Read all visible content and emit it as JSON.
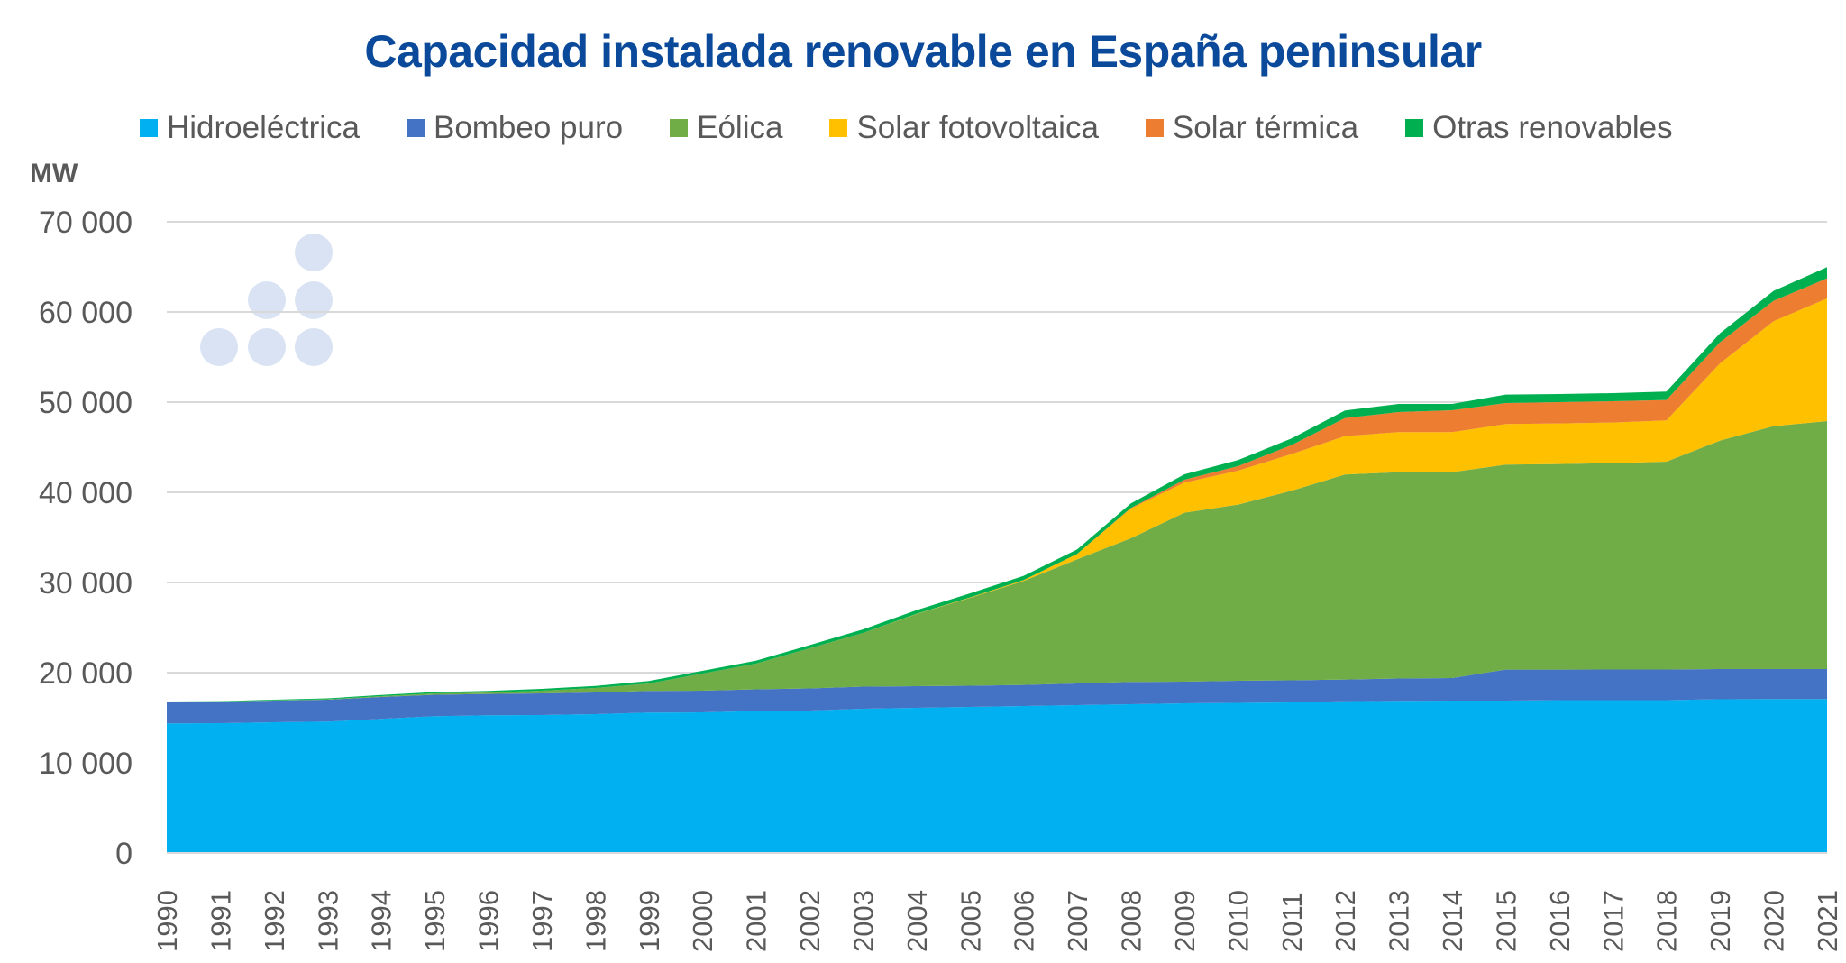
{
  "chart_data": {
    "type": "area",
    "stacked": true,
    "title": "Capacidad instalada renovable en España peninsular",
    "ylabel": "MW",
    "xlabel": "",
    "ylim": [
      0,
      70000
    ],
    "yticks": [
      0,
      10000,
      20000,
      30000,
      40000,
      50000,
      60000,
      70000
    ],
    "ytick_labels": [
      "0",
      "10 000",
      "20 000",
      "30 000",
      "40 000",
      "50 000",
      "60 000",
      "70 000"
    ],
    "grid": true,
    "legend_position": "top",
    "categories": [
      "1990",
      "1991",
      "1992",
      "1993",
      "1994",
      "1995",
      "1996",
      "1997",
      "1998",
      "1999",
      "2000",
      "2001",
      "2002",
      "2003",
      "2004",
      "2005",
      "2006",
      "2007",
      "2008",
      "2009",
      "2010",
      "2011",
      "2012",
      "2013",
      "2014",
      "2015",
      "2016",
      "2017",
      "2018",
      "2019",
      "2020",
      "2021"
    ],
    "series": [
      {
        "name": "Hidroeléctrica",
        "color": "#00B0F0",
        "values": [
          14370,
          14400,
          14500,
          14570,
          14870,
          15170,
          15270,
          15300,
          15400,
          15570,
          15600,
          15750,
          15800,
          16000,
          16100,
          16200,
          16300,
          16400,
          16500,
          16600,
          16650,
          16700,
          16840,
          16870,
          16900,
          16900,
          16950,
          16950,
          16950,
          17050,
          17070,
          17070
        ]
      },
      {
        "name": "Bombeo puro",
        "color": "#4472C4",
        "values": [
          2370,
          2380,
          2400,
          2430,
          2430,
          2380,
          2370,
          2400,
          2400,
          2400,
          2400,
          2400,
          2450,
          2450,
          2400,
          2350,
          2340,
          2400,
          2470,
          2400,
          2450,
          2450,
          2400,
          2480,
          2500,
          3440,
          3390,
          3400,
          3400,
          3350,
          3330,
          3330
        ]
      },
      {
        "name": "Eólica",
        "color": "#70AD47",
        "values": [
          0,
          0,
          20,
          50,
          100,
          150,
          160,
          300,
          500,
          830,
          1900,
          2850,
          4450,
          5950,
          8000,
          9750,
          11530,
          13770,
          15930,
          18740,
          19540,
          21020,
          22730,
          22890,
          22840,
          22730,
          22800,
          22890,
          23050,
          25340,
          26940,
          27500
        ]
      },
      {
        "name": "Solar fotovoltaica",
        "color": "#FFC000",
        "values": [
          0,
          0,
          0,
          0,
          0,
          0,
          0,
          0,
          0,
          0,
          0,
          0,
          0,
          0,
          20,
          50,
          100,
          600,
          3300,
          3330,
          3760,
          4070,
          4270,
          4430,
          4430,
          4500,
          4500,
          4500,
          4570,
          8560,
          11630,
          13600
        ]
      },
      {
        "name": "Solar térmica",
        "color": "#ED7D31",
        "values": [
          0,
          0,
          0,
          0,
          0,
          0,
          0,
          0,
          0,
          0,
          0,
          0,
          0,
          0,
          0,
          0,
          0,
          10,
          60,
          330,
          500,
          1000,
          2000,
          2230,
          2430,
          2330,
          2360,
          2360,
          2270,
          2340,
          2270,
          2240
        ]
      },
      {
        "name": "Otras renovables",
        "color": "#00B050",
        "values": [
          60,
          60,
          80,
          100,
          120,
          150,
          170,
          200,
          230,
          270,
          300,
          330,
          350,
          400,
          420,
          450,
          470,
          500,
          500,
          600,
          670,
          730,
          830,
          900,
          700,
          940,
          900,
          900,
          930,
          1000,
          1100,
          1230
        ]
      }
    ]
  },
  "decoration": {
    "logo_dots_color": "#DAE3F3"
  }
}
